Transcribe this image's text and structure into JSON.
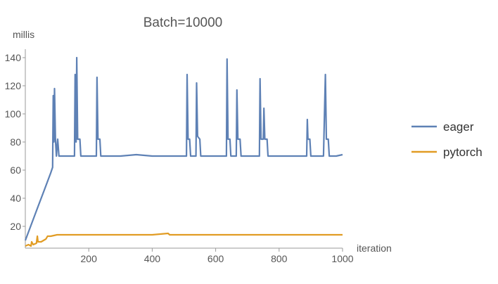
{
  "chart_data": {
    "type": "line",
    "title": "Batch=10000",
    "xlabel": "iteration",
    "ylabel": "millis",
    "xlim": [
      0,
      1000
    ],
    "ylim": [
      0,
      145
    ],
    "xticks": [
      200,
      400,
      600,
      800,
      1000
    ],
    "yticks": [
      20,
      40,
      60,
      80,
      100,
      120,
      140
    ],
    "grid": false,
    "legend_position": "right",
    "series": [
      {
        "name": "eager",
        "color": "#5e81b5",
        "points": [
          [
            0,
            10
          ],
          [
            20,
            22
          ],
          [
            40,
            34
          ],
          [
            60,
            46
          ],
          [
            80,
            58
          ],
          [
            86,
            62
          ],
          [
            88,
            113
          ],
          [
            90,
            80
          ],
          [
            92,
            118
          ],
          [
            95,
            82
          ],
          [
            98,
            70
          ],
          [
            102,
            82
          ],
          [
            106,
            70
          ],
          [
            120,
            70
          ],
          [
            140,
            70
          ],
          [
            155,
            70
          ],
          [
            157,
            128
          ],
          [
            160,
            80
          ],
          [
            162,
            140
          ],
          [
            165,
            82
          ],
          [
            172,
            82
          ],
          [
            175,
            70
          ],
          [
            190,
            70
          ],
          [
            210,
            70
          ],
          [
            224,
            70
          ],
          [
            226,
            126
          ],
          [
            229,
            82
          ],
          [
            235,
            82
          ],
          [
            238,
            70
          ],
          [
            260,
            70
          ],
          [
            300,
            70
          ],
          [
            350,
            71
          ],
          [
            400,
            70
          ],
          [
            450,
            70
          ],
          [
            500,
            70
          ],
          [
            508,
            70
          ],
          [
            510,
            128
          ],
          [
            513,
            82
          ],
          [
            518,
            82
          ],
          [
            521,
            70
          ],
          [
            538,
            70
          ],
          [
            540,
            122
          ],
          [
            543,
            84
          ],
          [
            550,
            82
          ],
          [
            553,
            70
          ],
          [
            600,
            70
          ],
          [
            634,
            70
          ],
          [
            636,
            139
          ],
          [
            639,
            82
          ],
          [
            645,
            82
          ],
          [
            648,
            70
          ],
          [
            665,
            70
          ],
          [
            667,
            117
          ],
          [
            670,
            82
          ],
          [
            677,
            82
          ],
          [
            680,
            70
          ],
          [
            738,
            70
          ],
          [
            740,
            125
          ],
          [
            743,
            82
          ],
          [
            750,
            82
          ],
          [
            752,
            104
          ],
          [
            755,
            82
          ],
          [
            762,
            82
          ],
          [
            765,
            70
          ],
          [
            800,
            70
          ],
          [
            850,
            70
          ],
          [
            887,
            70
          ],
          [
            889,
            96
          ],
          [
            891,
            82
          ],
          [
            897,
            82
          ],
          [
            900,
            70
          ],
          [
            940,
            70
          ],
          [
            946,
            128
          ],
          [
            949,
            82
          ],
          [
            955,
            82
          ],
          [
            958,
            70
          ],
          [
            980,
            70
          ],
          [
            1000,
            71
          ]
        ]
      },
      {
        "name": "pytorch",
        "color": "#e19c24",
        "points": [
          [
            0,
            6
          ],
          [
            10,
            7
          ],
          [
            18,
            6
          ],
          [
            20,
            9
          ],
          [
            25,
            7
          ],
          [
            35,
            8
          ],
          [
            38,
            13
          ],
          [
            40,
            9
          ],
          [
            50,
            9
          ],
          [
            65,
            11
          ],
          [
            70,
            13
          ],
          [
            80,
            13
          ],
          [
            100,
            14
          ],
          [
            150,
            14
          ],
          [
            200,
            14
          ],
          [
            300,
            14
          ],
          [
            400,
            14
          ],
          [
            450,
            15
          ],
          [
            455,
            14
          ],
          [
            500,
            14
          ],
          [
            600,
            14
          ],
          [
            700,
            14
          ],
          [
            800,
            14
          ],
          [
            900,
            14
          ],
          [
            1000,
            14
          ]
        ]
      }
    ]
  }
}
